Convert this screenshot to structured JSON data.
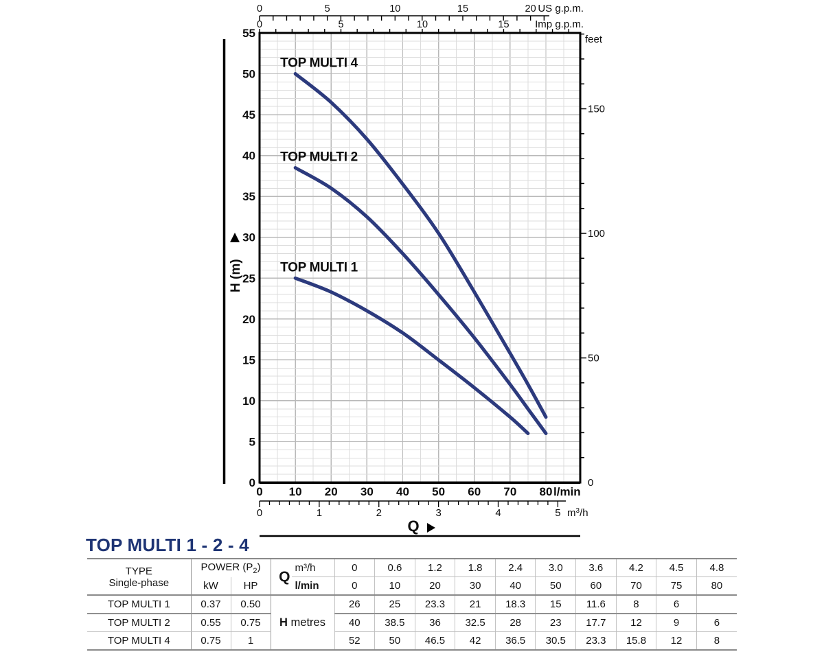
{
  "page_title": "TOP MULTI 1 - 2 - 4",
  "chart_data": {
    "type": "line",
    "title": "",
    "xlabel": "Q",
    "ylabel": "H (m)",
    "x_primary_unit": "l/min",
    "x_primary_ticks": [
      0,
      10,
      20,
      30,
      40,
      50,
      60,
      70,
      80
    ],
    "x_minor_step_lmin": 5,
    "xlim_lmin": [
      0,
      89.6
    ],
    "x_secondary": {
      "unit": "m³/h",
      "ticks": [
        0,
        1,
        2,
        3,
        4,
        5
      ],
      "lmin_per_unit": 16.667
    },
    "x_top_us": {
      "unit": "US g.p.m.",
      "ticks": [
        0,
        5,
        10,
        15,
        20
      ],
      "lmin_per_unit": 3.7854
    },
    "x_top_imp": {
      "unit": "Imp g.p.m.",
      "ticks": [
        0,
        5,
        10,
        15
      ],
      "lmin_per_unit": 4.5461
    },
    "ylim_m": [
      0,
      55
    ],
    "y_tick_step_m": 5,
    "y_minor_step_m": 1,
    "y_right": {
      "unit": "feet",
      "ticks": [
        0,
        50,
        100,
        150
      ],
      "minor_step_ft": 10,
      "m_per_ft": 0.3048
    },
    "grid": true,
    "legend_position": "on-curve-labels",
    "series": [
      {
        "name": "TOP MULTI 1",
        "points_lmin_m": [
          [
            10,
            25
          ],
          [
            20,
            23.3
          ],
          [
            30,
            21
          ],
          [
            40,
            18.3
          ],
          [
            50,
            15
          ],
          [
            60,
            11.6
          ],
          [
            70,
            8
          ],
          [
            75,
            6
          ]
        ]
      },
      {
        "name": "TOP MULTI 2",
        "points_lmin_m": [
          [
            10,
            38.5
          ],
          [
            20,
            36
          ],
          [
            30,
            32.5
          ],
          [
            40,
            28
          ],
          [
            50,
            23
          ],
          [
            60,
            17.7
          ],
          [
            70,
            12
          ],
          [
            75,
            9
          ],
          [
            80,
            6
          ]
        ]
      },
      {
        "name": "TOP MULTI 4",
        "points_lmin_m": [
          [
            10,
            50
          ],
          [
            20,
            46.5
          ],
          [
            30,
            42
          ],
          [
            40,
            36.5
          ],
          [
            50,
            30.5
          ],
          [
            60,
            23.3
          ],
          [
            70,
            15.8
          ],
          [
            75,
            12
          ],
          [
            80,
            8
          ]
        ]
      }
    ],
    "colors": {
      "curve": "#2c3a7d",
      "grid_minor": "#dcdcdc",
      "grid_major": "#b9b9b9",
      "axis": "#000000"
    }
  },
  "table": {
    "title": "TOP MULTI 1 - 2 - 4",
    "title_color": "#1e3474",
    "col_type_header": "TYPE",
    "col_type_subheader": "Single-phase",
    "power_header_prefix": "POWER (P",
    "power_header_sub": "2",
    "power_header_suffix": ")",
    "kw_header": "kW",
    "hp_header": "HP",
    "q_label": "Q",
    "q_row1_unit": "m³/h",
    "q_row2_unit": "l/min",
    "h_label_bold": "H",
    "h_label_rest": " metres",
    "q_m3h": [
      "0",
      "0.6",
      "1.2",
      "1.8",
      "2.4",
      "3.0",
      "3.6",
      "4.2",
      "4.5",
      "4.8"
    ],
    "q_lmin": [
      "0",
      "10",
      "20",
      "30",
      "40",
      "50",
      "60",
      "70",
      "75",
      "80"
    ],
    "pumps": [
      {
        "type": "TOP MULTI 1",
        "kw": "0.37",
        "hp": "0.50",
        "h_metres": [
          "26",
          "25",
          "23.3",
          "21",
          "18.3",
          "15",
          "11.6",
          "8",
          "6",
          ""
        ]
      },
      {
        "type": "TOP MULTI 2",
        "kw": "0.55",
        "hp": "0.75",
        "h_metres": [
          "40",
          "38.5",
          "36",
          "32.5",
          "28",
          "23",
          "17.7",
          "12",
          "9",
          "6"
        ]
      },
      {
        "type": "TOP MULTI 4",
        "kw": "0.75",
        "hp": "1",
        "h_metres": [
          "52",
          "50",
          "46.5",
          "42",
          "36.5",
          "30.5",
          "23.3",
          "15.8",
          "12",
          "8"
        ]
      }
    ]
  }
}
